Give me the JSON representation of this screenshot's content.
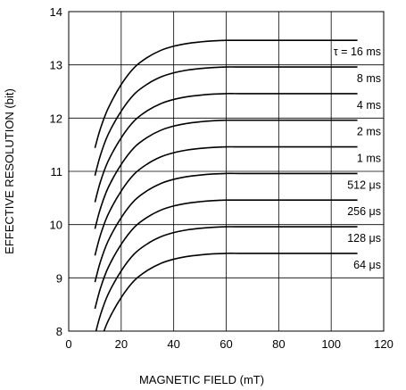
{
  "chart_data": {
    "type": "line",
    "xlabel": "MAGNETIC FIELD (mT)",
    "ylabel": "EFFECTIVE RESOLUTION (bit)",
    "xlim": [
      0,
      120
    ],
    "ylim": [
      8,
      14
    ],
    "x_ticks": [
      "0",
      "20",
      "40",
      "60",
      "80",
      "100",
      "120"
    ],
    "y_ticks": [
      "8",
      "9",
      "10",
      "11",
      "12",
      "13",
      "14"
    ],
    "grid": true,
    "x": [
      10,
      12,
      15,
      20,
      25,
      30,
      35,
      40,
      45,
      50,
      55,
      60,
      65,
      70,
      80,
      90,
      100,
      110
    ],
    "series": [
      {
        "name": "τ = 16 ms",
        "values": [
          11.44,
          11.79,
          12.18,
          12.63,
          12.95,
          13.14,
          13.27,
          13.35,
          13.4,
          13.43,
          13.45,
          13.46,
          13.46,
          13.46,
          13.46,
          13.46,
          13.46,
          13.46
        ]
      },
      {
        "name": "8 ms",
        "values": [
          10.92,
          11.29,
          11.69,
          12.13,
          12.45,
          12.64,
          12.77,
          12.85,
          12.9,
          12.93,
          12.95,
          12.96,
          12.96,
          12.96,
          12.96,
          12.96,
          12.96,
          12.96
        ]
      },
      {
        "name": "4 ms",
        "values": [
          10.42,
          10.79,
          11.19,
          11.63,
          11.95,
          12.14,
          12.27,
          12.35,
          12.4,
          12.43,
          12.45,
          12.46,
          12.46,
          12.46,
          12.46,
          12.46,
          12.46,
          12.46
        ]
      },
      {
        "name": "2 ms",
        "values": [
          9.92,
          10.29,
          10.69,
          11.13,
          11.45,
          11.64,
          11.77,
          11.85,
          11.9,
          11.93,
          11.95,
          11.96,
          11.96,
          11.96,
          11.96,
          11.96,
          11.96,
          11.96
        ]
      },
      {
        "name": "1 ms",
        "values": [
          9.42,
          9.79,
          10.19,
          10.63,
          10.95,
          11.14,
          11.27,
          11.35,
          11.4,
          11.43,
          11.45,
          11.46,
          11.46,
          11.46,
          11.46,
          11.46,
          11.46,
          11.46
        ]
      },
      {
        "name": "512 μs",
        "values": [
          8.92,
          9.29,
          9.69,
          10.13,
          10.45,
          10.64,
          10.77,
          10.85,
          10.9,
          10.93,
          10.95,
          10.96,
          10.96,
          10.96,
          10.96,
          10.96,
          10.96,
          10.96
        ]
      },
      {
        "name": "256 μs",
        "values": [
          8.42,
          8.79,
          9.19,
          9.63,
          9.95,
          10.14,
          10.27,
          10.35,
          10.4,
          10.43,
          10.45,
          10.46,
          10.46,
          10.46,
          10.46,
          10.46,
          10.46,
          10.46
        ]
      },
      {
        "name": "128 μs",
        "values": [
          7.92,
          8.29,
          8.69,
          9.13,
          9.45,
          9.64,
          9.77,
          9.85,
          9.9,
          9.93,
          9.95,
          9.96,
          9.96,
          9.96,
          9.96,
          9.96,
          9.96,
          9.96
        ]
      },
      {
        "name": "64 μs",
        "values": [
          7.42,
          7.79,
          8.19,
          8.63,
          8.95,
          9.14,
          9.27,
          9.35,
          9.4,
          9.43,
          9.45,
          9.46,
          9.46,
          9.46,
          9.46,
          9.46,
          9.46,
          9.46
        ]
      }
    ]
  }
}
